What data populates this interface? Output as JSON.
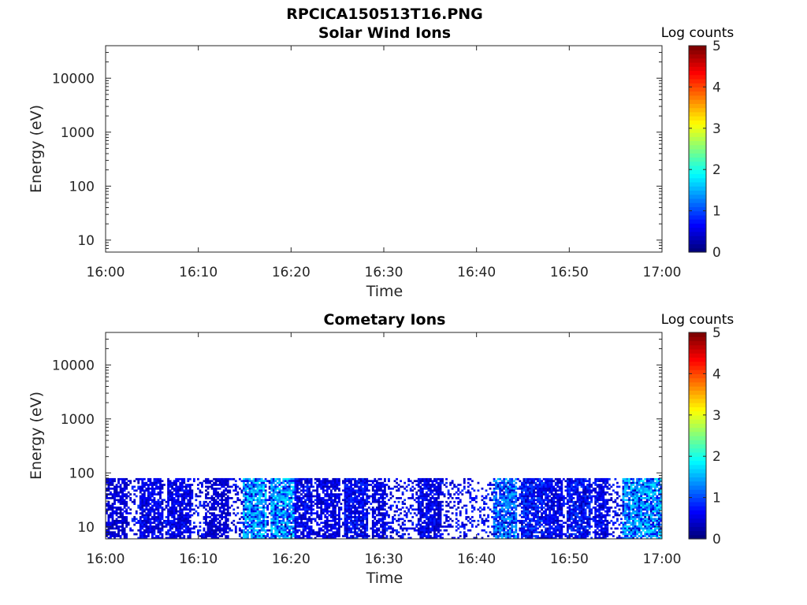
{
  "figure": {
    "title": "RPCICA150513T16.PNG"
  },
  "chart_data": [
    {
      "type": "heatmap",
      "title": "Solar Wind Ions",
      "xlabel": "Time",
      "ylabel": "Energy (eV)",
      "x_tick_labels": [
        "16:00",
        "16:10",
        "16:20",
        "16:30",
        "16:40",
        "16:50",
        "17:00"
      ],
      "x_range": [
        "16:00",
        "17:00"
      ],
      "y_scale": "log",
      "y_tick_values": [
        10,
        100,
        1000,
        10000
      ],
      "y_tick_labels": [
        "10",
        "100",
        "1000",
        "10000"
      ],
      "y_range": [
        6,
        40000
      ],
      "colorbar": {
        "label": "Log counts",
        "range": [
          0,
          5
        ],
        "tick_labels": [
          "0",
          "1",
          "2",
          "3",
          "4",
          "5"
        ],
        "colormap": "jet"
      },
      "cells": []
    },
    {
      "type": "heatmap",
      "title": "Cometary Ions",
      "xlabel": "Time",
      "ylabel": "Energy (eV)",
      "x_tick_labels": [
        "16:00",
        "16:10",
        "16:20",
        "16:30",
        "16:40",
        "16:50",
        "17:00"
      ],
      "x_range": [
        "16:00",
        "17:00"
      ],
      "y_scale": "log",
      "y_tick_values": [
        10,
        100,
        1000,
        10000
      ],
      "y_tick_labels": [
        "10",
        "100",
        "1000",
        "10000"
      ],
      "y_range": [
        6,
        40000
      ],
      "colorbar": {
        "label": "Log counts",
        "range": [
          0,
          5
        ],
        "tick_labels": [
          "0",
          "1",
          "2",
          "3",
          "4",
          "5"
        ],
        "colormap": "jet"
      },
      "energy_range_with_counts_eV": [
        6,
        80
      ],
      "activity_bands": [
        {
          "start": "16:00",
          "end": "16:02",
          "level": 0.6
        },
        {
          "start": "16:04",
          "end": "16:06",
          "level": 0.8
        },
        {
          "start": "16:07",
          "end": "16:09",
          "level": 0.8
        },
        {
          "start": "16:11",
          "end": "16:13",
          "level": 0.5
        },
        {
          "start": "16:15",
          "end": "16:17",
          "level": 1.6
        },
        {
          "start": "16:18",
          "end": "16:20",
          "level": 1.6
        },
        {
          "start": "16:20",
          "end": "16:22",
          "level": 0.9
        },
        {
          "start": "16:23",
          "end": "16:25",
          "level": 0.7
        },
        {
          "start": "16:26",
          "end": "16:28",
          "level": 1.0
        },
        {
          "start": "16:29",
          "end": "16:30",
          "level": 0.7
        },
        {
          "start": "16:34",
          "end": "16:36",
          "level": 0.8
        },
        {
          "start": "16:42",
          "end": "16:44",
          "level": 1.3
        },
        {
          "start": "16:45",
          "end": "16:47",
          "level": 1.2
        },
        {
          "start": "16:47",
          "end": "16:49",
          "level": 0.9
        },
        {
          "start": "16:50",
          "end": "16:52",
          "level": 1.1
        },
        {
          "start": "16:53",
          "end": "16:54",
          "level": 0.9
        },
        {
          "start": "16:56",
          "end": "16:58",
          "level": 1.5
        },
        {
          "start": "16:58",
          "end": "17:00",
          "level": 1.6
        }
      ]
    }
  ]
}
